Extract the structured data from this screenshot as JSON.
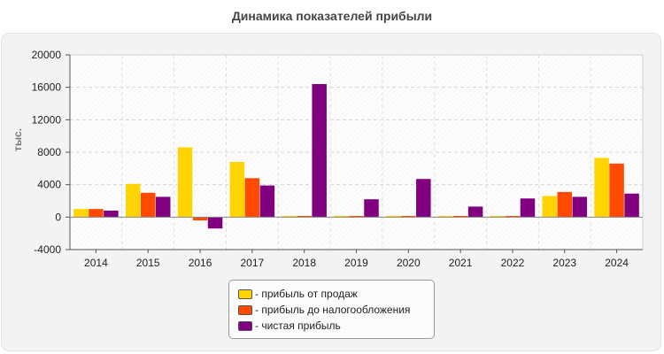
{
  "chart_data": {
    "type": "bar",
    "title": "Динамика показателей прибыли",
    "ylabel": "тыс.",
    "xlabel": "",
    "ylim": [
      -4000,
      20000
    ],
    "yticks": [
      -4000,
      0,
      4000,
      8000,
      12000,
      16000,
      20000
    ],
    "grid": true,
    "legend_position": "bottom-center",
    "categories": [
      "2014",
      "2015",
      "2016",
      "2017",
      "2018",
      "2019",
      "2020",
      "2021",
      "2022",
      "2023",
      "2024"
    ],
    "series": [
      {
        "name": "- прибыль от продаж",
        "color": "#ffd400",
        "values": [
          1000,
          4100,
          8600,
          6800,
          150,
          150,
          150,
          150,
          150,
          2600,
          7300
        ]
      },
      {
        "name": "- прибыль до налогообложения",
        "color": "#ff4a00",
        "values": [
          1000,
          3000,
          -400,
          4800,
          150,
          150,
          150,
          150,
          150,
          3100,
          6600
        ]
      },
      {
        "name": "- чистая прибыль",
        "color": "#800080",
        "values": [
          800,
          2500,
          -1400,
          3900,
          16400,
          2200,
          4700,
          1300,
          2300,
          2500,
          2900
        ]
      }
    ]
  }
}
